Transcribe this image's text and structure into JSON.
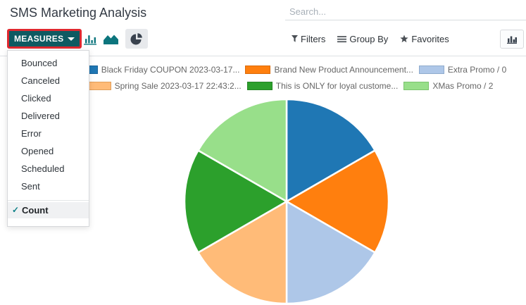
{
  "header": {
    "title": "SMS Marketing Analysis",
    "search_placeholder": "Search..."
  },
  "toolbar": {
    "measures_label": "MEASURES",
    "filters_label": "Filters",
    "group_by_label": "Group By",
    "favorites_label": "Favorites"
  },
  "measures_menu": {
    "items": [
      "Bounced",
      "Canceled",
      "Clicked",
      "Delivered",
      "Error",
      "Opened",
      "Scheduled",
      "Sent"
    ],
    "count_label": "Count",
    "count_checked": true
  },
  "colors": {
    "primary_teal": "#0e5a62",
    "highlight_red": "#e0282f",
    "icon_teal": "#0c757d",
    "icon_dark": "#39424e"
  },
  "chart_data": {
    "type": "pie",
    "measure": "Count",
    "labels": [
      "Black Friday COUPON 2023-03-17...",
      "Brand New Product Announcement...",
      "Extra Promo / 0",
      "Spring Sale 2023-03-17 22:43:2...",
      "This is ONLY for loyal custome...",
      "XMas Promo / 2"
    ],
    "values": [
      1,
      1,
      1,
      1,
      1,
      1
    ],
    "colors": [
      "#1f77b4",
      "#ff7f0e",
      "#aec7e8",
      "#ffbb78",
      "#2ca02c",
      "#98df8a"
    ],
    "border_colors": [
      "#1a649a",
      "#d96a0a",
      "#8fabcd",
      "#e09e5a",
      "#248424",
      "#7bc46e"
    ],
    "legend_rows": [
      [
        0,
        1,
        2
      ],
      [
        3,
        4,
        5
      ]
    ],
    "legend_position": "top"
  }
}
